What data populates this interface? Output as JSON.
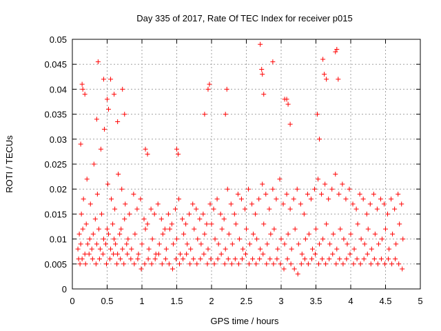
{
  "chart_data": {
    "type": "scatter",
    "title": "Day 335 of 2017, Rate Of TEC Index for receiver p015",
    "xlabel": "GPS time / hours",
    "ylabel": "ROTI / TECUs",
    "xlim": [
      0,
      5
    ],
    "ylim": [
      0,
      0.05
    ],
    "xticks": [
      0,
      0.5,
      1,
      1.5,
      2,
      2.5,
      3,
      3.5,
      4,
      4.5,
      5
    ],
    "xtick_labels": [
      "0",
      "0.5",
      "1",
      "1.5",
      "2",
      "2.5",
      "3",
      "3.5",
      "4",
      "4.5",
      "5"
    ],
    "yticks": [
      0,
      0.005,
      0.01,
      0.015,
      0.02,
      0.025,
      0.03,
      0.035,
      0.04,
      0.045,
      0.05
    ],
    "ytick_labels": [
      "0",
      "0.005",
      "0.01",
      "0.015",
      "0.02",
      "0.025",
      "0.03",
      "0.035",
      "0.04",
      "0.045",
      "0.05"
    ],
    "grid": true,
    "marker": "+",
    "marker_color": "#ff0000",
    "series": [
      {
        "name": "ROTI",
        "x": [
          0.08,
          0.1,
          0.12,
          0.15,
          0.18,
          0.2,
          0.22,
          0.25,
          0.28,
          0.3,
          0.33,
          0.35,
          0.38,
          0.4,
          0.42,
          0.45,
          0.48,
          0.5,
          0.52,
          0.55,
          0.58,
          0.6,
          0.62,
          0.65,
          0.68,
          0.7,
          0.72,
          0.75,
          0.78,
          0.8,
          0.85,
          0.9,
          0.95,
          1.0,
          1.05,
          1.1,
          1.15,
          1.2,
          1.25,
          1.3,
          1.35,
          1.4,
          1.45,
          1.5,
          1.55,
          1.6,
          1.65,
          1.7,
          1.75,
          1.8,
          1.85,
          1.9,
          1.95,
          2.0,
          2.05,
          2.1,
          2.15,
          2.2,
          2.25,
          2.3,
          2.35,
          2.4,
          2.45,
          2.5,
          2.55,
          2.6,
          2.65,
          2.7,
          2.75,
          2.8,
          2.85,
          2.9,
          2.95,
          3.0,
          3.05,
          3.1,
          3.15,
          3.2,
          3.25,
          3.3,
          3.35,
          3.4,
          3.45,
          3.5,
          3.55,
          3.6,
          3.65,
          3.7,
          3.75,
          3.8,
          3.85,
          3.9,
          3.95,
          4.0,
          4.05,
          4.1,
          4.15,
          4.2,
          4.25,
          4.3,
          4.35,
          4.4,
          4.45,
          4.5,
          4.55,
          4.6,
          4.65,
          4.7,
          4.75,
          0.09,
          0.13,
          0.16,
          0.21,
          0.26,
          0.31,
          0.36,
          0.41,
          0.46,
          0.51,
          0.56,
          0.61,
          0.66,
          0.71,
          0.76,
          0.82,
          0.88,
          0.93,
          0.98,
          1.03,
          1.08,
          1.13,
          1.18,
          1.23,
          1.28,
          1.33,
          1.38,
          1.43,
          1.48,
          1.53,
          1.58,
          1.63,
          1.68,
          1.73,
          1.78,
          1.83,
          1.88,
          1.93,
          1.98,
          2.03,
          2.08,
          2.13,
          2.18,
          2.23,
          2.28,
          2.33,
          2.38,
          2.43,
          2.48,
          2.53,
          2.58,
          2.63,
          2.68,
          2.73,
          2.78,
          2.83,
          2.88,
          2.93,
          2.98,
          3.03,
          3.08,
          3.13,
          3.18,
          3.23,
          3.28,
          3.33,
          3.38,
          3.43,
          3.48,
          3.53,
          3.58,
          3.63,
          3.68,
          3.73,
          3.78,
          3.83,
          3.88,
          3.93,
          3.98,
          4.03,
          4.08,
          4.13,
          4.18,
          4.23,
          4.28,
          4.33,
          4.38,
          4.43,
          4.48,
          4.53,
          4.58,
          4.63,
          4.68,
          4.73,
          0.11,
          0.14,
          0.19,
          0.24,
          0.29,
          0.34,
          0.39,
          0.44,
          0.49,
          0.54,
          0.59,
          0.64,
          0.69,
          0.74,
          0.79,
          0.84,
          0.89,
          0.94,
          0.99,
          1.04,
          1.09,
          1.14,
          1.19,
          1.24,
          1.29,
          1.34,
          1.39,
          1.44,
          1.49,
          1.54,
          1.59,
          1.64,
          1.69,
          1.74,
          1.79,
          1.84,
          1.89,
          1.94,
          1.99,
          2.04,
          2.09,
          2.14,
          2.19,
          2.24,
          2.29,
          2.34,
          2.39,
          2.44,
          2.49,
          2.54,
          2.59,
          2.64,
          2.69,
          2.74,
          2.79,
          2.84,
          2.89,
          2.94,
          2.99,
          3.04,
          3.09,
          3.14,
          3.19,
          3.24,
          3.29,
          3.34,
          3.39,
          3.44,
          3.49,
          3.54,
          3.59,
          3.64,
          3.69,
          3.74,
          3.79,
          3.84,
          3.89,
          3.94,
          3.99,
          4.04,
          4.09,
          4.14,
          4.19,
          4.24,
          4.29,
          4.34,
          4.39,
          4.44,
          4.49,
          4.54,
          4.59,
          4.64,
          4.69,
          4.74,
          0.12,
          0.14,
          0.15,
          0.18,
          0.35,
          0.37,
          0.45,
          0.5,
          0.52,
          0.55,
          0.6,
          0.65,
          0.72,
          0.75,
          1.05,
          1.08,
          1.5,
          1.52,
          1.9,
          1.95,
          1.97,
          2.2,
          2.22,
          2.7,
          2.72,
          2.73,
          2.75,
          2.88,
          3.05,
          3.08,
          3.1,
          3.13,
          3.52,
          3.55,
          3.6,
          3.62,
          3.65,
          3.78,
          3.8,
          3.82
        ],
        "y": [
          0.008,
          0.011,
          0.009,
          0.012,
          0.007,
          0.013,
          0.009,
          0.01,
          0.008,
          0.011,
          0.014,
          0.009,
          0.012,
          0.008,
          0.015,
          0.01,
          0.009,
          0.012,
          0.011,
          0.008,
          0.013,
          0.01,
          0.009,
          0.007,
          0.011,
          0.012,
          0.008,
          0.014,
          0.009,
          0.01,
          0.008,
          0.011,
          0.007,
          0.009,
          0.012,
          0.008,
          0.01,
          0.007,
          0.009,
          0.011,
          0.008,
          0.012,
          0.009,
          0.01,
          0.007,
          0.011,
          0.009,
          0.008,
          0.012,
          0.01,
          0.009,
          0.011,
          0.008,
          0.013,
          0.01,
          0.009,
          0.012,
          0.008,
          0.011,
          0.009,
          0.013,
          0.01,
          0.008,
          0.012,
          0.009,
          0.011,
          0.01,
          0.008,
          0.013,
          0.009,
          0.011,
          0.012,
          0.008,
          0.01,
          0.009,
          0.011,
          0.008,
          0.012,
          0.009,
          0.007,
          0.01,
          0.011,
          0.008,
          0.012,
          0.009,
          0.01,
          0.013,
          0.009,
          0.011,
          0.008,
          0.012,
          0.01,
          0.009,
          0.011,
          0.008,
          0.013,
          0.01,
          0.009,
          0.012,
          0.008,
          0.011,
          0.009,
          0.01,
          0.012,
          0.008,
          0.011,
          0.009,
          0.013,
          0.01,
          0.006,
          0.015,
          0.018,
          0.022,
          0.017,
          0.025,
          0.019,
          0.028,
          0.032,
          0.021,
          0.018,
          0.016,
          0.023,
          0.02,
          0.017,
          0.015,
          0.019,
          0.016,
          0.018,
          0.014,
          0.013,
          0.016,
          0.015,
          0.017,
          0.014,
          0.012,
          0.015,
          0.013,
          0.016,
          0.018,
          0.014,
          0.013,
          0.015,
          0.017,
          0.016,
          0.014,
          0.015,
          0.013,
          0.017,
          0.016,
          0.018,
          0.015,
          0.014,
          0.02,
          0.017,
          0.015,
          0.019,
          0.018,
          0.016,
          0.02,
          0.017,
          0.015,
          0.018,
          0.021,
          0.019,
          0.016,
          0.02,
          0.018,
          0.022,
          0.017,
          0.019,
          0.016,
          0.018,
          0.02,
          0.017,
          0.015,
          0.019,
          0.018,
          0.02,
          0.022,
          0.019,
          0.021,
          0.018,
          0.02,
          0.023,
          0.019,
          0.021,
          0.018,
          0.02,
          0.017,
          0.016,
          0.019,
          0.018,
          0.015,
          0.017,
          0.019,
          0.016,
          0.018,
          0.017,
          0.015,
          0.018,
          0.016,
          0.019,
          0.017,
          0.005,
          0.006,
          0.005,
          0.007,
          0.006,
          0.005,
          0.006,
          0.007,
          0.005,
          0.006,
          0.007,
          0.005,
          0.006,
          0.005,
          0.007,
          0.006,
          0.005,
          0.006,
          0.004,
          0.005,
          0.006,
          0.005,
          0.006,
          0.007,
          0.005,
          0.006,
          0.005,
          0.004,
          0.006,
          0.005,
          0.006,
          0.007,
          0.005,
          0.006,
          0.005,
          0.006,
          0.007,
          0.005,
          0.006,
          0.005,
          0.006,
          0.007,
          0.005,
          0.006,
          0.005,
          0.006,
          0.005,
          0.006,
          0.007,
          0.005,
          0.006,
          0.005,
          0.006,
          0.007,
          0.005,
          0.006,
          0.005,
          0.006,
          0.005,
          0.004,
          0.006,
          0.005,
          0.004,
          0.003,
          0.005,
          0.006,
          0.005,
          0.006,
          0.007,
          0.005,
          0.006,
          0.005,
          0.006,
          0.007,
          0.005,
          0.006,
          0.005,
          0.006,
          0.007,
          0.005,
          0.006,
          0.005,
          0.006,
          0.007,
          0.005,
          0.006,
          0.005,
          0.006,
          0.005,
          0.006,
          0.005,
          0.006,
          0.005,
          0.004,
          0.029,
          0.041,
          0.04,
          0.039,
          0.034,
          0.0455,
          0.042,
          0.038,
          0.036,
          0.042,
          0.039,
          0.0335,
          0.04,
          0.035,
          0.028,
          0.027,
          0.028,
          0.027,
          0.035,
          0.04,
          0.041,
          0.035,
          0.04,
          0.049,
          0.044,
          0.043,
          0.039,
          0.0455,
          0.038,
          0.038,
          0.037,
          0.033,
          0.035,
          0.03,
          0.046,
          0.043,
          0.042,
          0.0475,
          0.048,
          0.042
        ]
      }
    ]
  }
}
